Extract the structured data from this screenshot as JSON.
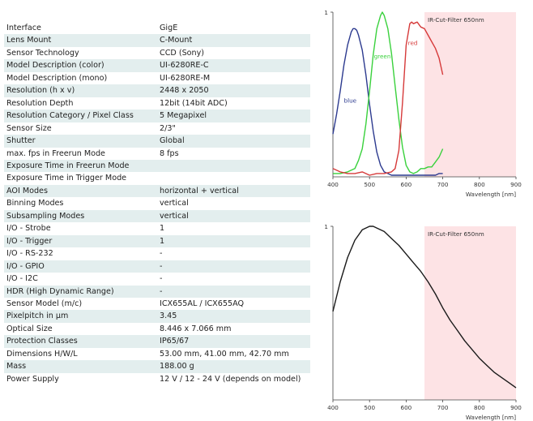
{
  "specs": [
    {
      "label": "Interface",
      "value": "GigE"
    },
    {
      "label": "Lens Mount",
      "value": "C-Mount"
    },
    {
      "label": "Sensor Technology",
      "value": "CCD (Sony)"
    },
    {
      "label": "Model Description (color)",
      "value": "UI-6280RE-C"
    },
    {
      "label": "Model Description (mono)",
      "value": "UI-6280RE-M"
    },
    {
      "label": "Resolution (h x v)",
      "value": "2448 x 2050"
    },
    {
      "label": "Resolution Depth",
      "value": "12bit (14bit ADC)"
    },
    {
      "label": "Resolution Category / Pixel Class",
      "value": "5 Megapixel"
    },
    {
      "label": "Sensor Size",
      "value": "2/3\""
    },
    {
      "label": "Shutter",
      "value": "Global"
    },
    {
      "label": "max. fps in Freerun Mode",
      "value": "8 fps"
    },
    {
      "label": "Exposure Time in Freerun Mode",
      "value": ""
    },
    {
      "label": "Exposure Time in Trigger Mode",
      "value": ""
    },
    {
      "label": "AOI Modes",
      "value": "horizontal + vertical"
    },
    {
      "label": "Binning Modes",
      "value": "vertical"
    },
    {
      "label": "Subsampling Modes",
      "value": "vertical"
    },
    {
      "label": "I/O - Strobe",
      "value": "1"
    },
    {
      "label": "I/O - Trigger",
      "value": "1"
    },
    {
      "label": "I/O - RS-232",
      "value": "-"
    },
    {
      "label": "I/O - GPIO",
      "value": "-"
    },
    {
      "label": "I/O - I2C",
      "value": "-"
    },
    {
      "label": "HDR (High Dynamic Range)",
      "value": "-"
    },
    {
      "label": "Sensor Model (m/c)",
      "value": "ICX655AL / ICX655AQ"
    },
    {
      "label": "Pixelpitch in µm",
      "value": "3.45"
    },
    {
      "label": "Optical Size",
      "value": "8.446 x 7.066 mm"
    },
    {
      "label": "Protection Classes",
      "value": "IP65/67"
    },
    {
      "label": "Dimensions H/W/L",
      "value": "53.00 mm, 41.00 mm, 42.70 mm"
    },
    {
      "label": "Mass",
      "value": "188.00 g"
    },
    {
      "label": "Power Supply",
      "value": "12 V / 12 - 24 V (depends on model)"
    }
  ],
  "chart_data": [
    {
      "type": "line",
      "title": "",
      "xlabel": "Wavelength [nm]",
      "ylabel": "",
      "xlim": [
        400,
        900
      ],
      "ylim": [
        0,
        1
      ],
      "xticks": [
        "400",
        "500",
        "600",
        "700",
        "800",
        "900"
      ],
      "yticks": [
        "1"
      ],
      "annotations": [
        {
          "text": "IR-Cut-Filter 650nm",
          "x_from": 650,
          "x_to": 900,
          "color": "#fde3e5"
        }
      ],
      "series": [
        {
          "name": "blue",
          "color": "#2c3a8f",
          "x": [
            400,
            410,
            420,
            430,
            440,
            450,
            455,
            460,
            465,
            470,
            480,
            490,
            500,
            510,
            520,
            530,
            540,
            550,
            560,
            570,
            580,
            590,
            600,
            610,
            620,
            630,
            640,
            650,
            660,
            670,
            680,
            690,
            700
          ],
          "values": [
            0.26,
            0.38,
            0.52,
            0.68,
            0.8,
            0.88,
            0.9,
            0.9,
            0.89,
            0.86,
            0.77,
            0.62,
            0.44,
            0.28,
            0.15,
            0.07,
            0.03,
            0.02,
            0.01,
            0.01,
            0.01,
            0.01,
            0.01,
            0.01,
            0.01,
            0.01,
            0.01,
            0.01,
            0.01,
            0.01,
            0.01,
            0.02,
            0.02
          ]
        },
        {
          "name": "green",
          "color": "#39d13c",
          "x": [
            400,
            420,
            440,
            460,
            470,
            480,
            490,
            500,
            510,
            520,
            530,
            535,
            540,
            550,
            560,
            570,
            580,
            590,
            600,
            610,
            620,
            630,
            640,
            650,
            660,
            670,
            680,
            690,
            700
          ],
          "values": [
            0.02,
            0.02,
            0.03,
            0.05,
            0.1,
            0.17,
            0.32,
            0.52,
            0.74,
            0.9,
            0.98,
            1.0,
            0.98,
            0.9,
            0.75,
            0.55,
            0.35,
            0.18,
            0.07,
            0.03,
            0.02,
            0.03,
            0.05,
            0.05,
            0.06,
            0.06,
            0.09,
            0.12,
            0.17
          ]
        },
        {
          "name": "red",
          "color": "#d63a3a",
          "x": [
            400,
            420,
            440,
            460,
            480,
            500,
            520,
            540,
            560,
            570,
            580,
            590,
            600,
            610,
            615,
            620,
            630,
            640,
            650,
            660,
            670,
            680,
            690,
            700
          ],
          "values": [
            0.05,
            0.03,
            0.02,
            0.02,
            0.03,
            0.01,
            0.02,
            0.02,
            0.03,
            0.05,
            0.16,
            0.45,
            0.8,
            0.93,
            0.94,
            0.93,
            0.94,
            0.91,
            0.9,
            0.86,
            0.82,
            0.78,
            0.72,
            0.62
          ]
        }
      ]
    },
    {
      "type": "line",
      "title": "",
      "xlabel": "Wavelength [nm]",
      "ylabel": "",
      "xlim": [
        400,
        900
      ],
      "ylim": [
        0,
        1
      ],
      "xticks": [
        "400",
        "500",
        "600",
        "700",
        "800",
        "900"
      ],
      "yticks": [
        "1"
      ],
      "annotations": [
        {
          "text": "IR-Cut-Filter 650nm",
          "x_from": 650,
          "x_to": 900,
          "color": "#fde3e5"
        }
      ],
      "series": [
        {
          "name": "",
          "color": "#1a1a1a",
          "x": [
            400,
            420,
            440,
            460,
            480,
            500,
            510,
            520,
            540,
            560,
            580,
            600,
            620,
            640,
            660,
            680,
            700,
            720,
            740,
            760,
            780,
            800,
            820,
            840,
            860,
            880,
            900
          ],
          "values": [
            0.51,
            0.68,
            0.82,
            0.92,
            0.98,
            1.0,
            1.0,
            0.99,
            0.97,
            0.93,
            0.89,
            0.84,
            0.79,
            0.74,
            0.68,
            0.61,
            0.53,
            0.46,
            0.4,
            0.34,
            0.29,
            0.24,
            0.2,
            0.16,
            0.13,
            0.1,
            0.07
          ]
        }
      ]
    }
  ]
}
